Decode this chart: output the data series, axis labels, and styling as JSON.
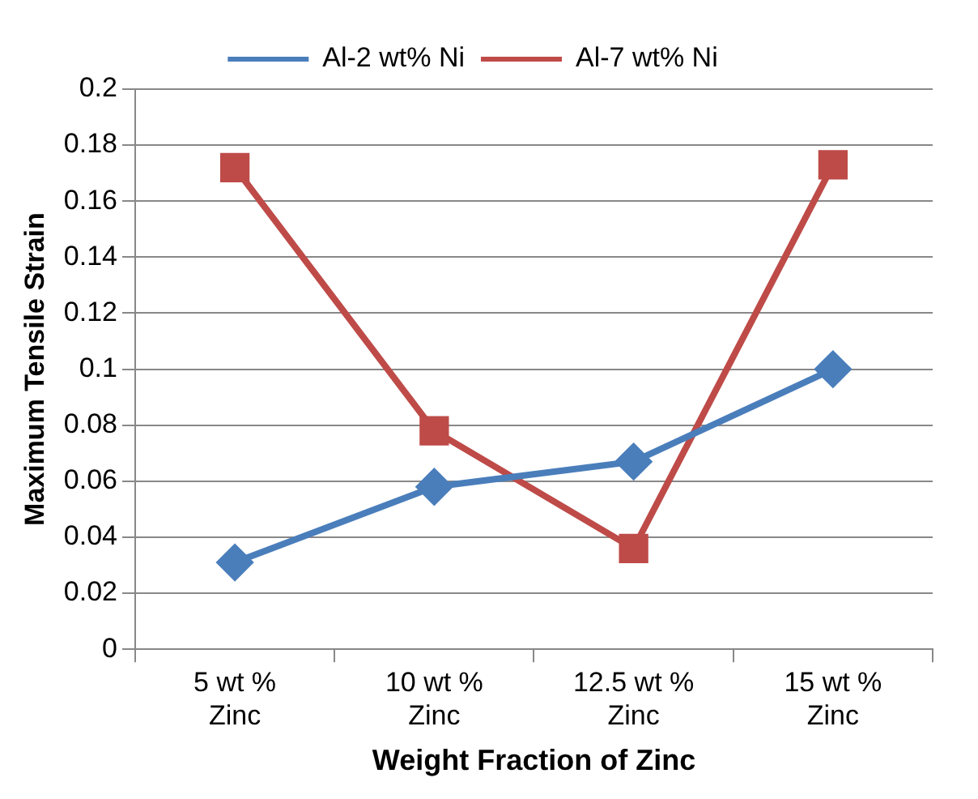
{
  "chart_data": {
    "type": "line",
    "xlabel": "Weight Fraction of Zinc",
    "ylabel": "Maximum Tensile Strain",
    "categories": [
      "5 wt % Zinc",
      "10 wt % Zinc",
      "12.5 wt % Zinc",
      "15 wt % Zinc"
    ],
    "series": [
      {
        "name": "Al-2 wt% Ni",
        "color": "#4a7ebb",
        "marker": "diamond",
        "values": [
          0.031,
          0.058,
          0.067,
          0.1
        ]
      },
      {
        "name": "Al-7 wt% Ni",
        "color": "#be4b48",
        "marker": "square",
        "values": [
          0.172,
          0.078,
          0.036,
          0.173
        ]
      }
    ],
    "ylim": [
      0,
      0.2
    ],
    "yticks": [
      0,
      0.02,
      0.04,
      0.06,
      0.08,
      0.1,
      0.12,
      0.14,
      0.16,
      0.18,
      0.2
    ],
    "grid": "y",
    "legend": "top",
    "line_style": "solid"
  }
}
